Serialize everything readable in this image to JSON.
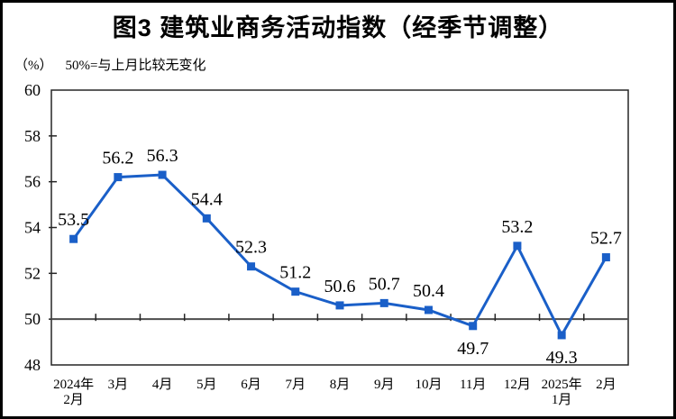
{
  "chart_data": {
    "type": "line",
    "title": "图3 建筑业商务活动指数（经季节调整）",
    "unit_label": "（%）",
    "subtitle": "50%=与上月比较无变化",
    "categories": [
      [
        "2024年",
        "2月"
      ],
      [
        "3月"
      ],
      [
        "4月"
      ],
      [
        "5月"
      ],
      [
        "6月"
      ],
      [
        "7月"
      ],
      [
        "8月"
      ],
      [
        "9月"
      ],
      [
        "10月"
      ],
      [
        "11月"
      ],
      [
        "12月"
      ],
      [
        "2025年",
        "1月"
      ],
      [
        "2月"
      ]
    ],
    "values": [
      53.5,
      56.2,
      56.3,
      54.4,
      52.3,
      51.2,
      50.6,
      50.7,
      50.4,
      49.7,
      53.2,
      49.3,
      52.7
    ],
    "data_labels": [
      "53.5",
      "56.2",
      "56.3",
      "54.4",
      "52.3",
      "51.2",
      "50.6",
      "50.7",
      "50.4",
      "49.7",
      "53.2",
      "49.3",
      "52.7"
    ],
    "label_position": [
      "above",
      "above",
      "above",
      "above",
      "above",
      "above",
      "above",
      "above",
      "above",
      "below",
      "above",
      "below",
      "above"
    ],
    "ylim": [
      48,
      60
    ],
    "yticks": [
      48,
      50,
      52,
      54,
      56,
      58,
      60
    ],
    "reference_line": 50,
    "grid": "off",
    "legend": "none",
    "marker": "square",
    "colors": {
      "line": "#1A5FC8",
      "reference_line": "#4d4d4d",
      "axis": "#262626",
      "text": "#000000"
    }
  }
}
